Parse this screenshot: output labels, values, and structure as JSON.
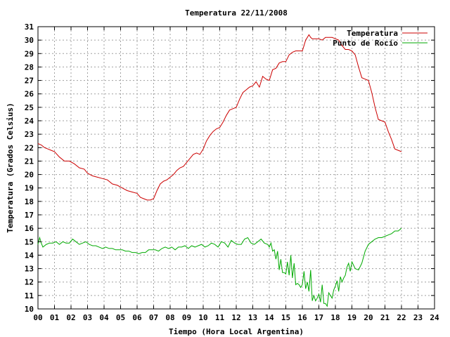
{
  "chart_data": {
    "type": "line",
    "title": "Temperatura 22/11/2008",
    "xlabel": "Tiempo (Hora Local Argentina)",
    "ylabel": "Temperatura (Grados Celsius)",
    "xlim": [
      0,
      24
    ],
    "ylim": [
      10,
      31
    ],
    "x_tick_labels": [
      "00",
      "01",
      "02",
      "03",
      "04",
      "05",
      "06",
      "07",
      "08",
      "09",
      "10",
      "11",
      "12",
      "13",
      "14",
      "15",
      "16",
      "17",
      "18",
      "19",
      "20",
      "21",
      "22",
      "23",
      "24"
    ],
    "y_tick_labels": [
      "10",
      "11",
      "12",
      "13",
      "14",
      "15",
      "16",
      "17",
      "18",
      "19",
      "20",
      "21",
      "22",
      "23",
      "24",
      "25",
      "26",
      "27",
      "28",
      "29",
      "30",
      "31"
    ],
    "grid": true,
    "legend_position": "top-right",
    "series": [
      {
        "name": "Temperatura",
        "color": "#cc0000",
        "x": [
          0,
          0.2,
          0.4,
          0.6,
          0.8,
          1.0,
          1.3,
          1.6,
          1.9,
          2.2,
          2.5,
          2.8,
          3.0,
          3.3,
          3.6,
          3.9,
          4.2,
          4.5,
          4.8,
          5.1,
          5.4,
          5.7,
          6.0,
          6.2,
          6.4,
          6.6,
          6.8,
          7.0,
          7.2,
          7.4,
          7.6,
          7.8,
          8.0,
          8.2,
          8.4,
          8.6,
          8.8,
          9.0,
          9.2,
          9.4,
          9.6,
          9.8,
          10.0,
          10.2,
          10.4,
          10.6,
          10.8,
          11.0,
          11.2,
          11.4,
          11.6,
          11.8,
          12.0,
          12.2,
          12.4,
          12.6,
          12.8,
          13.0,
          13.2,
          13.4,
          13.6,
          13.8,
          14.0,
          14.2,
          14.4,
          14.6,
          14.8,
          15.0,
          15.2,
          15.4,
          15.6,
          15.8,
          16.0,
          16.1,
          16.2,
          16.3,
          16.4,
          16.5,
          16.6,
          16.8,
          17.0,
          17.2,
          17.4,
          17.6,
          17.8,
          18.0,
          18.2,
          18.4,
          18.6,
          18.8,
          19.0,
          19.2,
          19.4,
          19.6,
          19.8,
          20.0,
          20.2,
          20.4,
          20.6,
          20.8,
          21.0,
          21.2,
          21.4,
          21.6,
          21.8,
          22.0
        ],
        "y": [
          22.3,
          22.2,
          22.0,
          21.9,
          21.8,
          21.7,
          21.3,
          21.0,
          21.0,
          20.8,
          20.5,
          20.4,
          20.1,
          19.9,
          19.8,
          19.7,
          19.6,
          19.3,
          19.2,
          19.0,
          18.8,
          18.7,
          18.6,
          18.3,
          18.2,
          18.1,
          18.1,
          18.2,
          18.8,
          19.3,
          19.5,
          19.6,
          19.8,
          20.0,
          20.3,
          20.5,
          20.6,
          20.9,
          21.2,
          21.5,
          21.6,
          21.5,
          21.9,
          22.5,
          22.9,
          23.2,
          23.4,
          23.5,
          23.9,
          24.4,
          24.8,
          24.9,
          25.0,
          25.6,
          26.1,
          26.3,
          26.5,
          26.6,
          26.9,
          26.5,
          27.3,
          27.1,
          27.0,
          27.8,
          27.9,
          28.3,
          28.4,
          28.4,
          28.9,
          29.1,
          29.2,
          29.2,
          29.2,
          29.6,
          30.0,
          30.2,
          30.4,
          30.2,
          30.1,
          30.1,
          30.1,
          30.0,
          30.2,
          30.2,
          30.2,
          30.1,
          30.0,
          29.6,
          29.3,
          29.3,
          29.2,
          28.9,
          28.0,
          27.2,
          27.1,
          27.0,
          26.1,
          25.0,
          24.1,
          24.0,
          23.9,
          23.2,
          22.6,
          21.9,
          21.8,
          21.7
        ]
      },
      {
        "name": "Punto de Rocío",
        "color": "#00aa00",
        "x": [
          0,
          0.1,
          0.2,
          0.3,
          0.4,
          0.5,
          0.7,
          0.9,
          1.1,
          1.3,
          1.5,
          1.7,
          1.9,
          2.1,
          2.3,
          2.5,
          2.7,
          2.9,
          3.1,
          3.3,
          3.5,
          3.7,
          3.9,
          4.1,
          4.3,
          4.5,
          4.7,
          4.9,
          5.1,
          5.3,
          5.5,
          5.7,
          5.9,
          6.1,
          6.3,
          6.5,
          6.7,
          6.9,
          7.1,
          7.3,
          7.5,
          7.7,
          7.9,
          8.1,
          8.3,
          8.5,
          8.7,
          8.9,
          9.1,
          9.3,
          9.5,
          9.7,
          9.9,
          10.1,
          10.3,
          10.5,
          10.7,
          10.9,
          11.1,
          11.3,
          11.5,
          11.7,
          11.9,
          12.1,
          12.3,
          12.5,
          12.7,
          12.9,
          13.1,
          13.3,
          13.5,
          13.7,
          13.9,
          14.0,
          14.1,
          14.2,
          14.3,
          14.4,
          14.5,
          14.6,
          14.7,
          14.8,
          14.9,
          15.0,
          15.1,
          15.2,
          15.3,
          15.4,
          15.5,
          15.6,
          15.7,
          15.8,
          15.9,
          16.0,
          16.1,
          16.2,
          16.3,
          16.4,
          16.5,
          16.6,
          16.7,
          16.8,
          16.9,
          17.0,
          17.1,
          17.2,
          17.3,
          17.4,
          17.5,
          17.6,
          17.7,
          17.8,
          17.9,
          18.0,
          18.1,
          18.2,
          18.3,
          18.4,
          18.5,
          18.6,
          18.7,
          18.8,
          18.9,
          19.0,
          19.2,
          19.4,
          19.6,
          19.8,
          20.0,
          20.2,
          20.4,
          20.6,
          20.8,
          21.0,
          21.2,
          21.4,
          21.6,
          21.8,
          22.0
        ],
        "y": [
          14.8,
          15.3,
          14.9,
          14.6,
          14.7,
          14.8,
          14.9,
          14.9,
          15.0,
          14.8,
          15.0,
          14.9,
          14.9,
          15.2,
          15.0,
          14.8,
          14.9,
          15.0,
          14.8,
          14.7,
          14.7,
          14.6,
          14.5,
          14.6,
          14.5,
          14.5,
          14.4,
          14.4,
          14.4,
          14.3,
          14.3,
          14.2,
          14.2,
          14.1,
          14.2,
          14.2,
          14.4,
          14.4,
          14.4,
          14.3,
          14.5,
          14.6,
          14.5,
          14.6,
          14.4,
          14.6,
          14.6,
          14.7,
          14.5,
          14.7,
          14.6,
          14.7,
          14.8,
          14.6,
          14.7,
          14.9,
          14.8,
          14.6,
          15.0,
          14.9,
          14.6,
          15.1,
          14.9,
          14.8,
          14.8,
          15.2,
          15.3,
          14.9,
          14.8,
          15.0,
          15.2,
          14.9,
          14.8,
          14.6,
          14.9,
          14.3,
          14.4,
          13.7,
          14.3,
          12.9,
          13.7,
          12.7,
          12.7,
          12.6,
          13.5,
          12.5,
          14.0,
          12.3,
          13.4,
          11.8,
          11.9,
          11.8,
          11.6,
          11.8,
          12.8,
          11.5,
          12.0,
          11.3,
          12.9,
          10.6,
          11.0,
          10.6,
          10.8,
          11.1,
          10.5,
          11.8,
          10.4,
          10.4,
          10.2,
          11.2,
          11.0,
          10.8,
          11.4,
          11.7,
          12.1,
          11.3,
          12.4,
          12.0,
          12.3,
          12.5,
          13.1,
          13.4,
          12.8,
          13.5,
          13.0,
          12.9,
          13.4,
          14.3,
          14.8,
          15.0,
          15.2,
          15.3,
          15.3,
          15.4,
          15.5,
          15.6,
          15.8,
          15.8,
          16.0
        ]
      }
    ]
  }
}
